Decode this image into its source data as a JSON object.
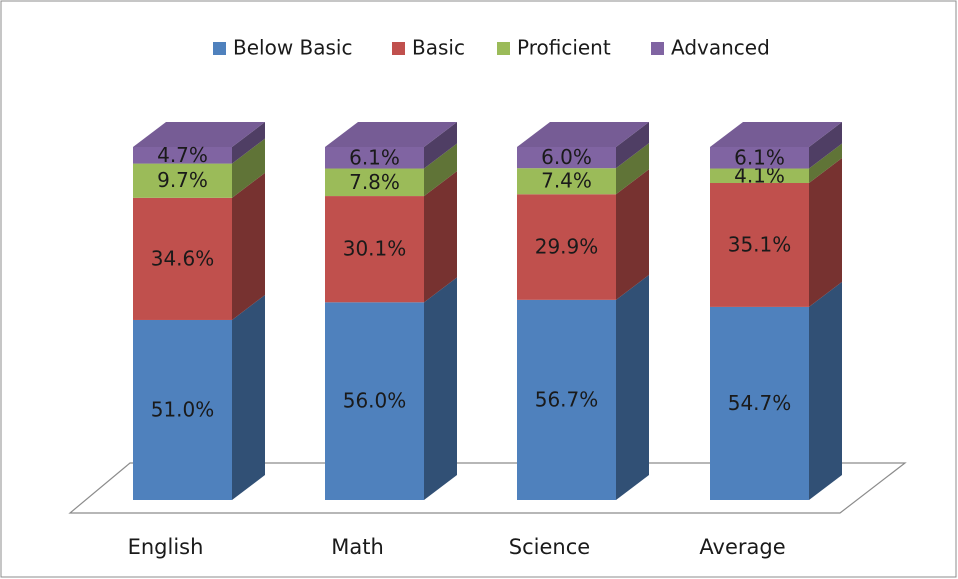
{
  "chart_data": {
    "type": "stacked-bar-3d",
    "categories": [
      "English",
      "Math",
      "Science",
      "Average"
    ],
    "series": [
      {
        "name": "Below Basic",
        "color": "#4f81bd",
        "values": [
          51.0,
          56.0,
          56.7,
          54.7
        ],
        "value_labels": [
          "51.0%",
          "56.0%",
          "56.7%",
          "54.7%"
        ]
      },
      {
        "name": "Basic",
        "color": "#c0504d",
        "values": [
          34.6,
          30.1,
          29.9,
          35.1
        ],
        "value_labels": [
          "34.6%",
          "30.1%",
          "29.9%",
          "35.1%"
        ]
      },
      {
        "name": "Proficient",
        "color": "#9bbb59",
        "values": [
          9.7,
          7.8,
          7.4,
          4.1
        ],
        "value_labels": [
          "9.7%",
          "7.8%",
          "7.4%",
          "4.1%"
        ]
      },
      {
        "name": "Advanced",
        "color": "#8064a2",
        "values": [
          4.7,
          6.1,
          6.0,
          6.1
        ],
        "value_labels": [
          "4.7%",
          "6.1%",
          "6.0%",
          "6.1%"
        ]
      }
    ],
    "legend": "top"
  }
}
